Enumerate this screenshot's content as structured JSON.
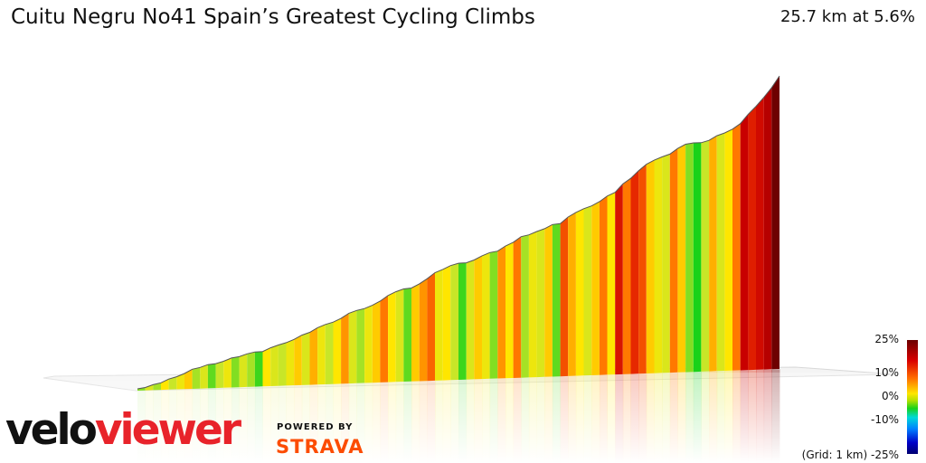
{
  "header": {
    "title": "Cuitu Negru No41 Spain’s Greatest Cycling Climbs",
    "stats": "25.7 km at 5.6%"
  },
  "legend": {
    "labels": [
      "25%",
      "10%",
      "0%",
      "-10%",
      "-25%"
    ],
    "grid_note": "(Grid: 1 km)"
  },
  "branding": {
    "logo_part1": "velo",
    "logo_part2": "viewer",
    "powered_by": "POWERED BY",
    "strava": "STRAVA"
  },
  "chart_data": {
    "type": "area",
    "description_free": true,
    "distance_km": 25.7,
    "avg_gradient_pct": 5.6,
    "grid_km": 1,
    "gradient_scale_pct": [
      -25,
      25
    ],
    "segments_gradient_pct": [
      3,
      6,
      4,
      8,
      5,
      7,
      9,
      4,
      6,
      2,
      5,
      7,
      3,
      6,
      4,
      1,
      8,
      6,
      5,
      7,
      9,
      6,
      10,
      7,
      5,
      8,
      11,
      6,
      4,
      7,
      9,
      12,
      8,
      6,
      2,
      9,
      11,
      13,
      7,
      8,
      5,
      1,
      6,
      9,
      7,
      3,
      11,
      8,
      12,
      4,
      7,
      6,
      9,
      2,
      14,
      10,
      8,
      6,
      9,
      12,
      8,
      18,
      12,
      16,
      14,
      9,
      7,
      6,
      12,
      9,
      3,
      0,
      5,
      10,
      6,
      8,
      12,
      20,
      17,
      19,
      21,
      25
    ]
  }
}
